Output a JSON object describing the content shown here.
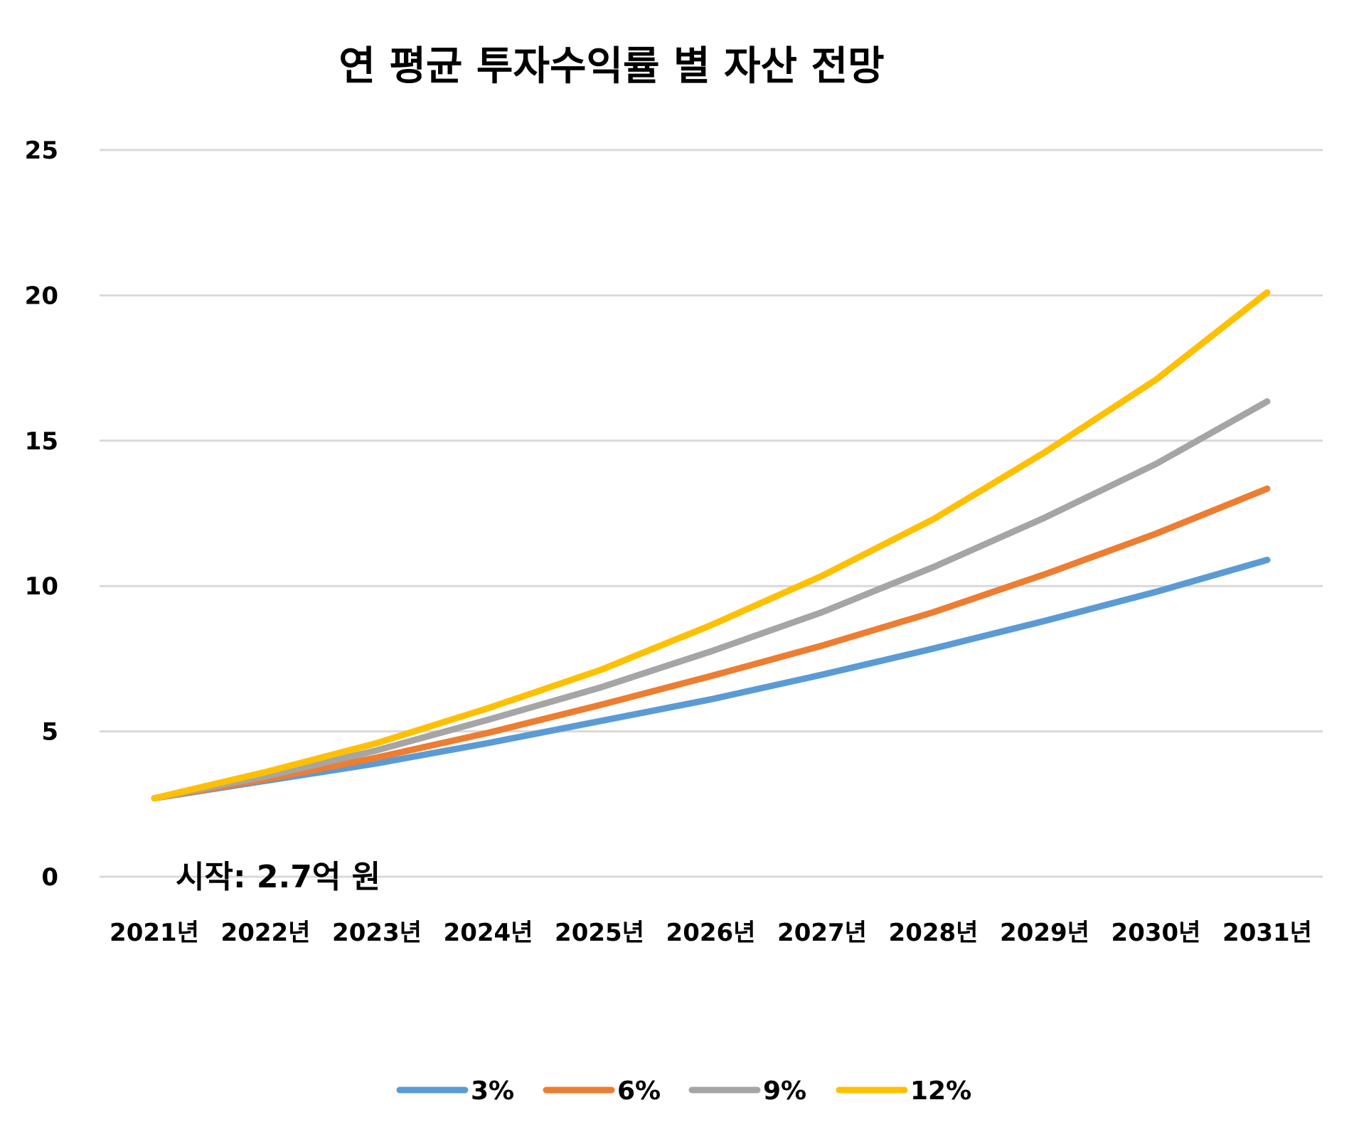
{
  "chart_data": {
    "type": "line",
    "title": "연 평균 투자수익률 별 자산 전망",
    "xlabel": "",
    "ylabel": "",
    "ylim": [
      0,
      25
    ],
    "yticks": [
      "0",
      "5",
      "10",
      "15",
      "20",
      "25"
    ],
    "grid": true,
    "legend_position": "bottom",
    "categories": [
      "2021년",
      "2022년",
      "2023년",
      "2024년",
      "2025년",
      "2026년",
      "2027년",
      "2028년",
      "2029년",
      "2030년",
      "2031년"
    ],
    "series": [
      {
        "name": "3%",
        "color": "#5b9bd5",
        "values": [
          2.7,
          3.3,
          3.9,
          4.6,
          5.35,
          6.1,
          6.95,
          7.85,
          8.8,
          9.8,
          10.9
        ]
      },
      {
        "name": "6%",
        "color": "#ed7d31",
        "values": [
          2.7,
          3.35,
          4.1,
          4.95,
          5.9,
          6.9,
          7.95,
          9.1,
          10.4,
          11.8,
          13.35
        ]
      },
      {
        "name": "9%",
        "color": "#a5a5a5",
        "values": [
          2.7,
          3.45,
          4.35,
          5.4,
          6.5,
          7.75,
          9.1,
          10.65,
          12.35,
          14.2,
          16.35
        ]
      },
      {
        "name": "12%",
        "color": "#ffc000",
        "values": [
          2.7,
          3.6,
          4.6,
          5.8,
          7.1,
          8.65,
          10.35,
          12.3,
          14.6,
          17.1,
          20.1
        ]
      }
    ],
    "annotation": "시작: 2.7억 원"
  }
}
